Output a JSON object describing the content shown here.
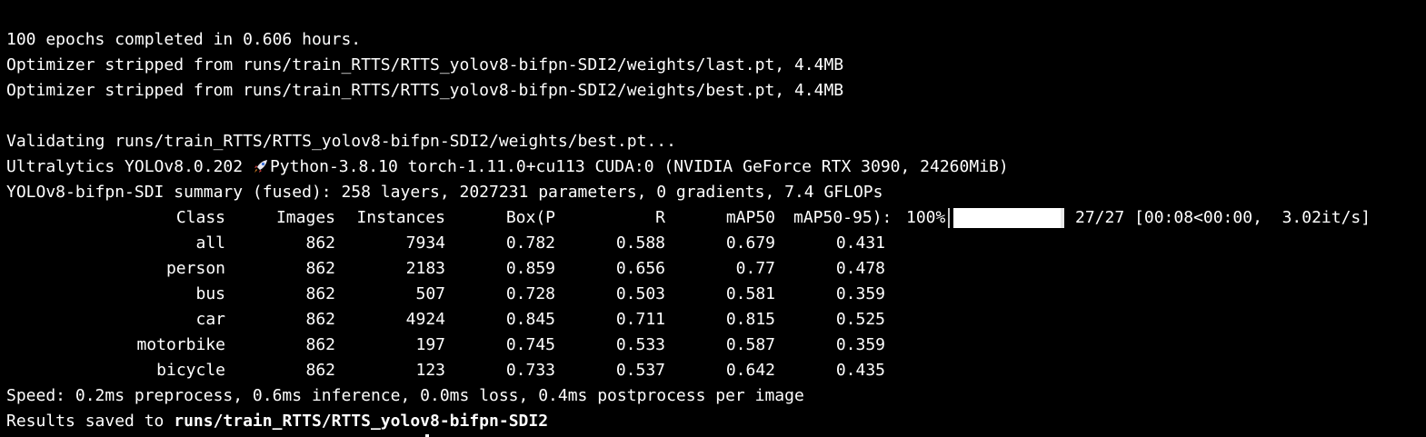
{
  "log": {
    "epochs_line": "100 epochs completed in 0.606 hours.",
    "opt_last_line": "Optimizer stripped from runs/train_RTTS/RTTS_yolov8-bifpn-SDI2/weights/last.pt, 4.4MB",
    "opt_best_line": "Optimizer stripped from runs/train_RTTS/RTTS_yolov8-bifpn-SDI2/weights/best.pt, 4.4MB",
    "validating_line": "Validating runs/train_RTTS/RTTS_yolov8-bifpn-SDI2/weights/best.pt...",
    "ultralytics_prefix": "Ultralytics YOLOv8.0.202 ",
    "ultralytics_icon": "rocket-icon",
    "ultralytics_suffix": "Python-3.8.10 torch-1.11.0+cu113 CUDA:0 (NVIDIA GeForce RTX 3090, 24260MiB)",
    "summary_line": "YOLOv8-bifpn-SDI summary (fused): 258 layers, 2027231 parameters, 0 gradients, 7.4 GFLOPs",
    "speed_line": "Speed: 0.2ms preprocess, 0.6ms inference, 0.0ms loss, 0.4ms postprocess per image",
    "results_prefix": "Results saved to ",
    "results_path": "runs/train_RTTS/RTTS_yolov8-bifpn-SDI2"
  },
  "table": {
    "headers": {
      "class": "Class",
      "images": "Images",
      "instances": "Instances",
      "box_p": "Box(P",
      "r": "R",
      "map50": "mAP50",
      "map50_95": "mAP50-95):"
    },
    "rows": [
      {
        "class": "all",
        "images": "862",
        "instances": "7934",
        "p": "0.782",
        "r": "0.588",
        "map50": "0.679",
        "map50_95": "0.431"
      },
      {
        "class": "person",
        "images": "862",
        "instances": "2183",
        "p": "0.859",
        "r": "0.656",
        "map50": "0.77",
        "map50_95": "0.478"
      },
      {
        "class": "bus",
        "images": "862",
        "instances": "507",
        "p": "0.728",
        "r": "0.503",
        "map50": "0.581",
        "map50_95": "0.359"
      },
      {
        "class": "car",
        "images": "862",
        "instances": "4924",
        "p": "0.845",
        "r": "0.711",
        "map50": "0.815",
        "map50_95": "0.525"
      },
      {
        "class": "motorbike",
        "images": "862",
        "instances": "197",
        "p": "0.745",
        "r": "0.533",
        "map50": "0.587",
        "map50_95": "0.359"
      },
      {
        "class": "bicycle",
        "images": "862",
        "instances": "123",
        "p": "0.733",
        "r": "0.537",
        "map50": "0.642",
        "map50_95": "0.435"
      }
    ]
  },
  "progress": {
    "percent_label": "100%",
    "fraction": 1.0,
    "tail": "27/27 [00:08<00:00,  3.02it/s]"
  },
  "colors": {
    "background": "#000000",
    "text": "#ffffff"
  }
}
